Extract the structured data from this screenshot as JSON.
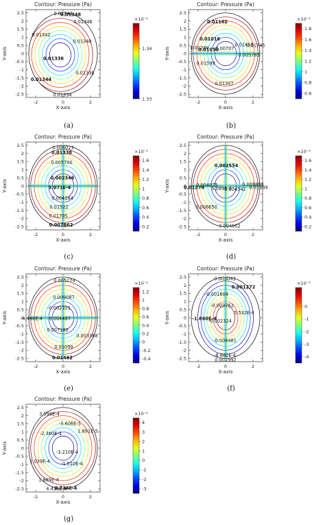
{
  "chart_data": [
    {
      "id": "a",
      "type": "contour",
      "caption": "(a)",
      "title": "Contour: Pressure (Pa)",
      "xlabel": "X-axis",
      "ylabel": "Y-axis",
      "xlim": [
        -2.7,
        2.7
      ],
      "ylim": [
        -2.7,
        2.7
      ],
      "xticks": [
        "-2",
        "0",
        "2"
      ],
      "yticks": [
        "2.5",
        "2",
        "1.5",
        "1",
        "0.5",
        "0",
        "-0.5",
        "-1",
        "-1.5",
        "-2",
        "-2.5"
      ],
      "colorbar": {
        "exponent": "×10⁻²",
        "ticks": [
          "1.34",
          "1.33"
        ],
        "range": [
          1.33,
          1.345
        ],
        "tick_values": [
          1.34,
          1.33
        ]
      },
      "contour_labels": [
        {
          "text": "0.01348",
          "x": 0.55,
          "y": 2.4,
          "bold": true
        },
        {
          "text": "0.01344",
          "x": 0.0,
          "y": 2.45,
          "bold": false
        },
        {
          "text": "0.01346",
          "x": 1.45,
          "y": 1.95,
          "bold": false
        },
        {
          "text": "0.01342",
          "x": -1.6,
          "y": 1.15,
          "bold": false
        },
        {
          "text": "0.01340",
          "x": 1.4,
          "y": 0.75,
          "bold": false
        },
        {
          "text": "0.01336",
          "x": -0.7,
          "y": -0.3,
          "bold": true
        },
        {
          "text": "0.01338",
          "x": 1.6,
          "y": -1.2,
          "bold": false
        },
        {
          "text": "0.01344",
          "x": -1.6,
          "y": -1.6,
          "bold": true
        },
        {
          "text": "0.01334",
          "x": -0.05,
          "y": -2.55,
          "bold": false
        }
      ]
    },
    {
      "id": "b",
      "type": "contour",
      "caption": "(b)",
      "title": "Contour: Pressure (Pa)",
      "xlabel": "X-axis",
      "ylabel": "Y-axis",
      "xlim": [
        -2.7,
        2.7
      ],
      "ylim": [
        -2.7,
        2.7
      ],
      "xticks": [
        "-2",
        "0",
        "2"
      ],
      "yticks": [
        "2.5",
        "2",
        "1.5",
        "1",
        "0.5",
        "0",
        "-0.5",
        "-1",
        "-1.5",
        "-2",
        "-2.5"
      ],
      "colorbar": {
        "exponent": "×10⁻²",
        "ticks": [
          "1.8",
          "1.6",
          "1.4",
          "1.2",
          "1",
          "0.8",
          "0.6"
        ],
        "range": [
          0.5,
          1.9
        ],
        "tick_values": [
          1.8,
          1.6,
          1.4,
          1.2,
          1.0,
          0.8,
          0.6
        ]
      },
      "contour_labels": [
        {
          "text": "0.01162",
          "x": -0.6,
          "y": 1.95,
          "bold": true
        },
        {
          "text": "0.01016",
          "x": -1.15,
          "y": 0.9,
          "bold": true
        },
        {
          "text": "0.01050",
          "x": -1.25,
          "y": 0.25,
          "bold": true
        },
        {
          "text": "0.01200",
          "x": -1.9,
          "y": 0.35,
          "bold": false
        },
        {
          "text": "0.00707",
          "x": -0.05,
          "y": 0.3,
          "bold": false
        },
        {
          "text": "0.01458",
          "x": 1.35,
          "y": 0.55,
          "bold": false
        },
        {
          "text": "0.01745",
          "x": 2.2,
          "y": 0.5,
          "bold": false
        },
        {
          "text": "0.005785",
          "x": 1.7,
          "y": -0.1,
          "bold": false
        },
        {
          "text": "0.01599",
          "x": -1.45,
          "y": -0.6,
          "bold": false
        },
        {
          "text": "0.01307",
          "x": -0.1,
          "y": -1.85,
          "bold": false
        }
      ]
    },
    {
      "id": "c",
      "type": "contour",
      "caption": "(c)",
      "title": "Contour: Pressure (Pa)",
      "xlabel": "X-axis",
      "ylabel": "Y-axis",
      "xlim": [
        -2.7,
        2.7
      ],
      "ylim": [
        -2.7,
        2.7
      ],
      "xticks": [
        "-2",
        "0",
        "2"
      ],
      "yticks": [
        "2.5",
        "2",
        "1.5",
        "1",
        "0.5",
        "0",
        "-0.5",
        "-1",
        "-1.5",
        "-2",
        "-2.5"
      ],
      "colorbar": {
        "exponent": "×10⁻²",
        "ticks": [
          "1.6",
          "1.4",
          "1.2",
          "1",
          "0.8",
          "0.6",
          "0.4",
          "0.2"
        ],
        "range": [
          0.1,
          1.7
        ],
        "tick_values": [
          1.6,
          1.4,
          1.2,
          1.0,
          0.8,
          0.6,
          0.4,
          0.2
        ]
      },
      "contour_labels": [
        {
          "text": "0.006023",
          "x": 0.0,
          "y": 2.35,
          "bold": false
        },
        {
          "text": "0.01338",
          "x": -0.1,
          "y": 2.05,
          "bold": true
        },
        {
          "text": "0.005700",
          "x": -0.1,
          "y": 1.45,
          "bold": false
        },
        {
          "text": "0.002346",
          "x": -0.05,
          "y": 0.5,
          "bold": true
        },
        {
          "text": "5.071E-4",
          "x": -0.25,
          "y": -0.1,
          "bold": true
        },
        {
          "text": "0.004184",
          "x": -0.05,
          "y": -0.75,
          "bold": false
        },
        {
          "text": "0.01522",
          "x": -0.3,
          "y": -1.3,
          "bold": false
        },
        {
          "text": "0.01705",
          "x": -0.35,
          "y": -1.85,
          "bold": false
        },
        {
          "text": "0.007862",
          "x": -0.15,
          "y": -2.4,
          "bold": true
        }
      ]
    },
    {
      "id": "d",
      "type": "contour",
      "caption": "(d)",
      "title": "Contour: Pressure (Pa)",
      "xlabel": "X-axis",
      "ylabel": "Y-axis",
      "xlim": [
        -2.7,
        2.7
      ],
      "ylim": [
        -2.7,
        2.7
      ],
      "xticks": [
        "-2",
        "0",
        "2"
      ],
      "yticks": [
        "2.5",
        "2",
        "1.5",
        "1",
        "0.5",
        "0",
        "-0.5",
        "-1",
        "-1.5",
        "-2",
        "-2.5"
      ],
      "colorbar": {
        "exponent": "×10⁻²",
        "ticks": [
          "1.6",
          "1.4",
          "1.2",
          "1",
          "0.8",
          "0.6",
          "0.4",
          "0.2"
        ],
        "range": [
          0.1,
          1.7
        ],
        "tick_values": [
          1.6,
          1.4,
          1.2,
          1.0,
          0.8,
          0.6,
          0.4,
          0.2
        ]
      },
      "contour_labels": [
        {
          "text": "0.002554",
          "x": 0.05,
          "y": 1.25,
          "bold": true
        },
        {
          "text": "0.004975",
          "x": -1.35,
          "y": 0.05,
          "bold": false
        },
        {
          "text": "0.01274",
          "x": -2.3,
          "y": -0.1,
          "bold": true
        },
        {
          "text": "5.099E-4",
          "x": -0.3,
          "y": -0.15,
          "bold": false
        },
        {
          "text": "0.004542",
          "x": 0.7,
          "y": -0.2,
          "bold": false
        },
        {
          "text": "0.008808",
          "x": 2.0,
          "y": 0.1,
          "bold": false
        },
        {
          "text": "0.01389",
          "x": 2.4,
          "y": -0.1,
          "bold": false
        },
        {
          "text": "0.006650",
          "x": -1.4,
          "y": -1.3,
          "bold": false
        },
        {
          "text": "0.004602",
          "x": 0.3,
          "y": -2.45,
          "bold": false
        }
      ]
    },
    {
      "id": "e",
      "type": "contour",
      "caption": "(e)",
      "title": "Contour: Pressure (Pa)",
      "xlabel": "X-axis",
      "ylabel": "Y-axis",
      "xlim": [
        -2.7,
        2.7
      ],
      "ylim": [
        -2.7,
        2.7
      ],
      "xticks": [
        "-2",
        "0",
        "2"
      ],
      "yticks": [
        "2.5",
        "2",
        "1.5",
        "1",
        "0.5",
        "0",
        "-0.5",
        "-1",
        "-1.5",
        "-2",
        "-2.5"
      ],
      "colorbar": {
        "exponent": "×10⁻²",
        "ticks": [
          "1.2",
          "1",
          "0.8",
          "0.6",
          "0.4",
          "0.2",
          "0",
          "-0.2",
          "-0.4"
        ],
        "range": [
          -0.5,
          1.3
        ],
        "tick_values": [
          1.2,
          1.0,
          0.8,
          0.6,
          0.4,
          0.2,
          0.0,
          -0.2,
          -0.4
        ]
      },
      "contour_labels": [
        {
          "text": "0.005274",
          "x": 0.1,
          "y": 2.3,
          "bold": false
        },
        {
          "text": "0.009087",
          "x": 0.05,
          "y": 1.25,
          "bold": false
        },
        {
          "text": "-0.002351",
          "x": -0.3,
          "y": 0.6,
          "bold": false
        },
        {
          "text": "-4.446E-4",
          "x": -2.3,
          "y": -0.05,
          "bold": false
        },
        {
          "text": "-0.004487",
          "x": -0.3,
          "y": -0.05,
          "bold": false
        },
        {
          "text": "0.007180",
          "x": -0.4,
          "y": -0.75,
          "bold": false
        },
        {
          "text": "0.003368",
          "x": 1.75,
          "y": -1.1,
          "bold": false
        },
        {
          "text": "0.01099",
          "x": 0.05,
          "y": -1.8,
          "bold": false
        },
        {
          "text": "0.01462",
          "x": -0.05,
          "y": -2.45,
          "bold": true
        }
      ]
    },
    {
      "id": "f",
      "type": "contour",
      "caption": "(f)",
      "title": "Contour: Pressure (Pa)",
      "xlabel": "X-axis",
      "ylabel": "Y-axis",
      "xlim": [
        -2.7,
        2.7
      ],
      "ylim": [
        -2.7,
        2.7
      ],
      "xticks": [
        "-2",
        "0",
        "2"
      ],
      "yticks": [
        "2.5",
        "2",
        "1.5",
        "1",
        "0.5",
        "0",
        "-0.5",
        "-1",
        "-1.5",
        "-2",
        "-2.5"
      ],
      "colorbar": {
        "exponent": "×10⁻³",
        "ticks": [
          "0",
          "-1",
          "-2",
          "-3",
          "-4"
        ],
        "range": [
          -4.5,
          1.5
        ],
        "tick_values": [
          0,
          -1,
          -2,
          -3,
          -4
        ]
      },
      "contour_labels": [
        {
          "text": "0.003043",
          "x": -0.05,
          "y": 2.4,
          "bold": false
        },
        {
          "text": "0.001272",
          "x": 1.3,
          "y": 1.9,
          "bold": true
        },
        {
          "text": "-0.001604",
          "x": -0.65,
          "y": 1.45,
          "bold": false
        },
        {
          "text": "-0.003762",
          "x": -0.25,
          "y": 0.75,
          "bold": false
        },
        {
          "text": "5.532E-4",
          "x": 1.35,
          "y": 0.3,
          "bold": false
        },
        {
          "text": "-1.660E-4",
          "x": -1.55,
          "y": -0.05,
          "bold": true
        },
        {
          "text": "-0.002324",
          "x": -0.4,
          "y": -0.2,
          "bold": false
        },
        {
          "text": "-0.004481",
          "x": -0.05,
          "y": -1.4,
          "bold": false
        },
        {
          "text": "-8.882E-4",
          "x": -0.05,
          "y": -2.3,
          "bold": false
        },
        {
          "text": "0.001992",
          "x": 0.0,
          "y": -2.6,
          "bold": false
        }
      ]
    },
    {
      "id": "g",
      "type": "contour",
      "caption": "(g)",
      "title": "Contour: Pressure (Pa)",
      "xlabel": "X-axis",
      "ylabel": "Y-axis",
      "xlim": [
        -2.7,
        2.7
      ],
      "ylim": [
        -2.7,
        2.7
      ],
      "xticks": [
        "-2",
        "0",
        "2"
      ],
      "yticks": [
        "2.5",
        "2",
        "1.5",
        "1",
        "0.5",
        "0",
        "-0.5",
        "-1",
        "-1.5",
        "-2",
        "-2.5"
      ],
      "colorbar": {
        "exponent": "×10⁻⁴",
        "ticks": [
          "4",
          "3",
          "2",
          "1",
          "0",
          "-1",
          "-2",
          "-3"
        ],
        "range": [
          -3.5,
          4.5
        ],
        "tick_values": [
          4,
          3,
          2,
          1,
          0,
          -1,
          -2,
          -3
        ]
      },
      "contour_labels": [
        {
          "text": "3.598E-4",
          "x": -1.0,
          "y": 2.1,
          "bold": false
        },
        {
          "text": "-5.606E-5",
          "x": 0.5,
          "y": 1.5,
          "bold": false
        },
        {
          "text": "1.891E-5",
          "x": 1.8,
          "y": 1.05,
          "bold": false
        },
        {
          "text": "-2.360E-4",
          "x": -0.9,
          "y": 0.9,
          "bold": false
        },
        {
          "text": "-3.210E-4",
          "x": 0.3,
          "y": -0.25,
          "bold": false
        },
        {
          "text": "1.039E-4",
          "x": -1.7,
          "y": -0.8,
          "bold": false
        },
        {
          "text": "-1.510E-4",
          "x": 0.65,
          "y": -0.95,
          "bold": false
        },
        {
          "text": "1.889E-4",
          "x": -1.05,
          "y": -1.95,
          "bold": false
        },
        {
          "text": "4.438E-4",
          "x": -0.5,
          "y": -2.5,
          "bold": false
        },
        {
          "text": "2.738E-4",
          "x": 0.2,
          "y": -2.45,
          "bold": true
        }
      ]
    }
  ]
}
